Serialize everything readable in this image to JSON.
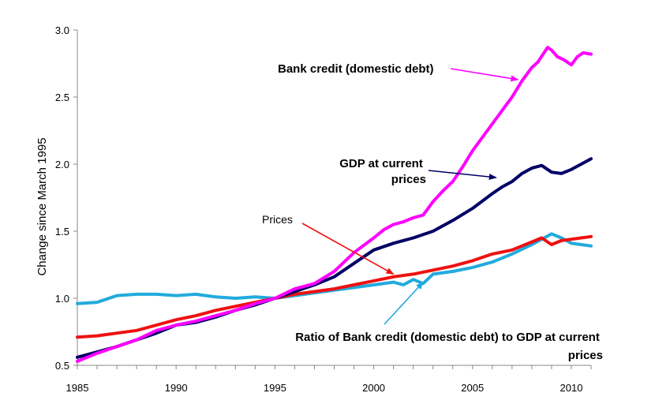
{
  "chart_data": {
    "type": "line",
    "ylabel": "Change since March 1995",
    "xlabel": "",
    "xlim": [
      1985,
      2011
    ],
    "ylim": [
      0.5,
      3.0
    ],
    "x_ticks": [
      "1985",
      "1990",
      "1995",
      "2000",
      "2005",
      "2010"
    ],
    "y_ticks": [
      "0.5",
      "1.0",
      "1.5",
      "2.0",
      "2.5",
      "3.0"
    ],
    "grid": false,
    "series": [
      {
        "key": "credit",
        "color": "#ff00ff",
        "x": [
          1985,
          1986,
          1987,
          1988,
          1989,
          1990,
          1991,
          1992,
          1993,
          1994,
          1995,
          1996,
          1997,
          1998,
          1999,
          2000,
          2000.5,
          2001,
          2001.5,
          2002,
          2002.5,
          2003,
          2003.5,
          2004,
          2004.5,
          2005,
          2005.5,
          2006,
          2006.5,
          2007,
          2007.5,
          2008,
          2008.3,
          2008.8,
          2009,
          2009.3,
          2009.6,
          2010,
          2010.3,
          2010.6,
          2011
        ],
        "y": [
          0.53,
          0.59,
          0.64,
          0.69,
          0.76,
          0.8,
          0.83,
          0.87,
          0.91,
          0.96,
          1.0,
          1.07,
          1.11,
          1.2,
          1.34,
          1.45,
          1.51,
          1.55,
          1.57,
          1.6,
          1.62,
          1.72,
          1.8,
          1.87,
          1.98,
          2.1,
          2.2,
          2.3,
          2.4,
          2.5,
          2.62,
          2.72,
          2.76,
          2.87,
          2.85,
          2.8,
          2.78,
          2.74,
          2.8,
          2.83,
          2.82
        ]
      },
      {
        "key": "gdp",
        "color": "#000066",
        "x": [
          1985,
          1986,
          1987,
          1988,
          1989,
          1990,
          1991,
          1992,
          1993,
          1994,
          1995,
          1996,
          1997,
          1998,
          1999,
          2000,
          2001,
          2002,
          2003,
          2004,
          2005,
          2006,
          2006.5,
          2007,
          2007.5,
          2008,
          2008.5,
          2009,
          2009.5,
          2010,
          2010.5,
          2011
        ],
        "y": [
          0.56,
          0.6,
          0.64,
          0.69,
          0.74,
          0.8,
          0.82,
          0.86,
          0.91,
          0.95,
          1.0,
          1.05,
          1.1,
          1.16,
          1.26,
          1.36,
          1.41,
          1.45,
          1.5,
          1.58,
          1.67,
          1.78,
          1.83,
          1.87,
          1.93,
          1.97,
          1.99,
          1.94,
          1.93,
          1.96,
          2.0,
          2.04
        ]
      },
      {
        "key": "prices",
        "color": "#ee1111",
        "x": [
          1985,
          1986,
          1987,
          1988,
          1989,
          1990,
          1991,
          1992,
          1993,
          1994,
          1995,
          1996,
          1997,
          1998,
          1999,
          2000,
          2001,
          2002,
          2003,
          2004,
          2005,
          2006,
          2007,
          2007.5,
          2008,
          2008.5,
          2009,
          2009.5,
          2010,
          2010.5,
          2011
        ],
        "y": [
          0.71,
          0.72,
          0.74,
          0.76,
          0.8,
          0.84,
          0.87,
          0.91,
          0.94,
          0.97,
          1.0,
          1.03,
          1.05,
          1.07,
          1.1,
          1.13,
          1.16,
          1.18,
          1.21,
          1.24,
          1.28,
          1.33,
          1.36,
          1.39,
          1.42,
          1.45,
          1.4,
          1.43,
          1.44,
          1.45,
          1.46
        ]
      },
      {
        "key": "ratio",
        "color": "#22aadd",
        "x": [
          1985,
          1986,
          1987,
          1988,
          1989,
          1990,
          1991,
          1992,
          1993,
          1994,
          1995,
          1996,
          1997,
          1998,
          1999,
          2000,
          2001,
          2001.5,
          2002,
          2002.5,
          2003,
          2004,
          2005,
          2006,
          2007,
          2008,
          2008.5,
          2009,
          2009.5,
          2010,
          2010.5,
          2011
        ],
        "y": [
          0.96,
          0.97,
          1.02,
          1.03,
          1.03,
          1.02,
          1.03,
          1.01,
          1.0,
          1.01,
          1.0,
          1.02,
          1.04,
          1.06,
          1.08,
          1.1,
          1.12,
          1.1,
          1.14,
          1.11,
          1.18,
          1.2,
          1.23,
          1.27,
          1.33,
          1.4,
          1.44,
          1.48,
          1.45,
          1.41,
          1.4,
          1.39
        ]
      }
    ],
    "annotations": [
      {
        "key": "credit_label",
        "text": "Bank credit (domestic debt)",
        "series": "credit",
        "arrow_to": [
          2007.3,
          2.63
        ],
        "align": "start"
      },
      {
        "key": "gdp_label",
        "lines": [
          "GDP at current",
          "prices"
        ],
        "series": "gdp",
        "arrow_to": [
          2006.2,
          1.9
        ],
        "align": "end"
      },
      {
        "key": "prices_label",
        "text": "Prices",
        "series": "prices",
        "arrow_to": [
          2001,
          1.18
        ],
        "align": "start"
      },
      {
        "key": "ratio_label",
        "lines": [
          "Ratio of Bank credit (domestic debt) to GDP at current",
          "prices"
        ],
        "series": "ratio",
        "arrow_to": [
          2002.5,
          1.12
        ],
        "align": "end"
      }
    ]
  }
}
